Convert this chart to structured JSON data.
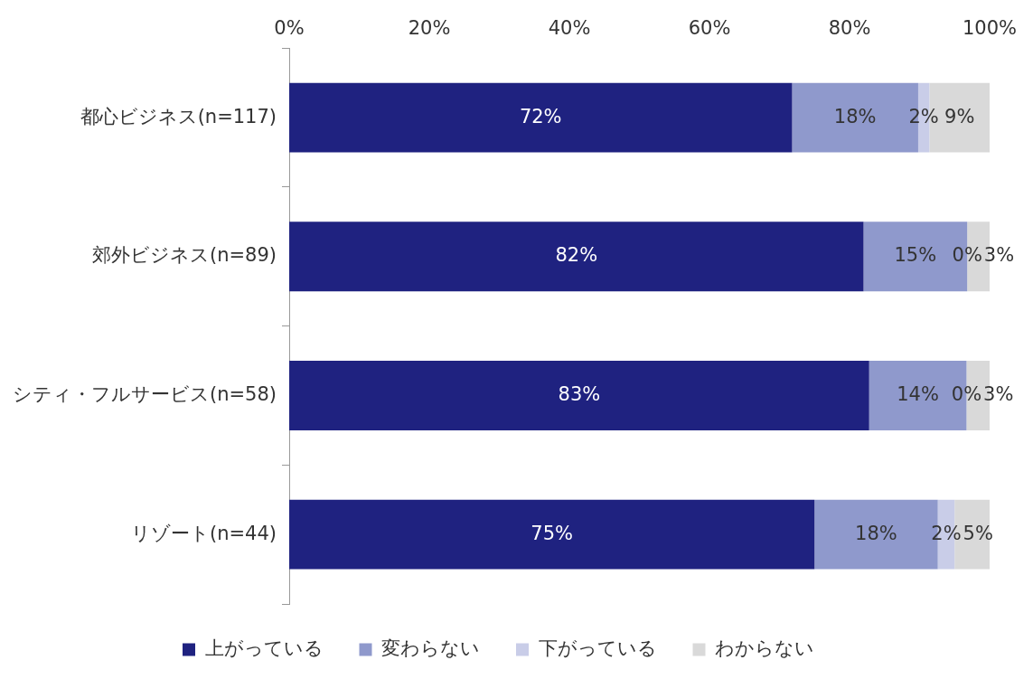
{
  "chart_data": {
    "type": "bar",
    "orientation": "horizontal",
    "stacked": true,
    "categories": [
      "都心ビジネス(n=117)",
      "郊外ビジネス(n=89)",
      "シティ・フルサービス(n=58)",
      "リゾート(n=44)"
    ],
    "series": [
      {
        "name": "上がっている",
        "color": "#1f2280",
        "values": [
          71.8,
          82.0,
          82.8,
          75.0
        ],
        "value_labels": [
          "72%",
          "82%",
          "83%",
          "75%"
        ]
      },
      {
        "name": "変わらない",
        "color": "#8f99cc",
        "values": [
          18.0,
          14.8,
          13.9,
          17.6
        ],
        "value_labels": [
          "18%",
          "15%",
          "14%",
          "18%"
        ]
      },
      {
        "name": "下がっている",
        "color": "#c9cde8",
        "values": [
          1.6,
          0,
          0,
          2.4
        ],
        "value_labels": [
          "2%",
          "0%",
          "0%",
          "2%"
        ]
      },
      {
        "name": "わからない",
        "color": "#d9d9d9",
        "values": [
          8.6,
          3.2,
          3.3,
          5.0
        ],
        "value_labels": [
          "9%",
          "3%",
          "3%",
          "5%"
        ]
      }
    ],
    "xlim": [
      0,
      100
    ],
    "xticks": [
      {
        "value": 0,
        "label": "0%"
      },
      {
        "value": 20,
        "label": "20%"
      },
      {
        "value": 40,
        "label": "40%"
      },
      {
        "value": 60,
        "label": "60%"
      },
      {
        "value": 80,
        "label": "80%"
      },
      {
        "value": 100,
        "label": "100%"
      }
    ],
    "grid": false,
    "legend": "bottom"
  }
}
